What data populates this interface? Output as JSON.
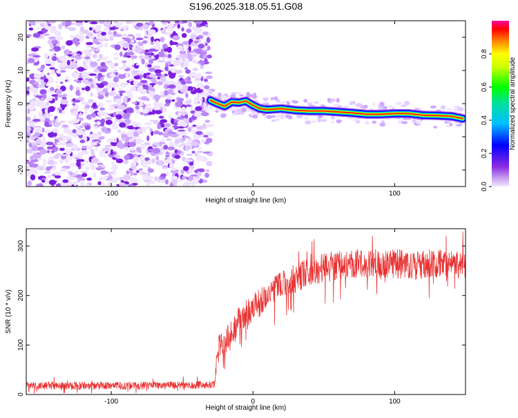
{
  "title": "S196.2025.318.05.51.G08",
  "chart_data": [
    {
      "type": "heatmap",
      "name": "spectrogram",
      "title": "S196.2025.318.05.51.G08",
      "xlabel": "Height of straight line (km)",
      "ylabel": "Frequency (Hz)",
      "xlim": [
        -160,
        150
      ],
      "ylim": [
        -25,
        25
      ],
      "xticks": [
        -100,
        0,
        100
      ],
      "yticks": [
        -20,
        -10,
        0,
        10,
        20
      ],
      "noise_region_x": [
        -160,
        -30
      ],
      "track": {
        "x": [
          -30,
          -25,
          -20,
          -15,
          -10,
          -5,
          0,
          5,
          10,
          20,
          30,
          40,
          50,
          60,
          70,
          80,
          90,
          100,
          110,
          120,
          130,
          140,
          148
        ],
        "freq": [
          1.0,
          0.0,
          -0.8,
          0.5,
          0.3,
          0.8,
          -0.5,
          -1.5,
          -1.8,
          -1.5,
          -2.0,
          -2.2,
          -2.2,
          -2.5,
          -2.8,
          -3.2,
          -3.2,
          -3.0,
          -3.0,
          -3.5,
          -3.6,
          -3.8,
          -4.5
        ]
      },
      "colorbar": {
        "label": "Normalized spectral amplitude",
        "range": [
          0,
          1
        ],
        "ticks": [
          "0.0",
          "0.2",
          "0.4",
          "0.6",
          "0.8"
        ]
      }
    },
    {
      "type": "line",
      "name": "snr",
      "xlabel": "Height of straight line (km)",
      "ylabel": "SNR (10 * v/v)",
      "xlim": [
        -160,
        150
      ],
      "ylim": [
        0,
        335
      ],
      "xticks": [
        -100,
        0,
        100
      ],
      "yticks": [
        0,
        100,
        200,
        300
      ],
      "color": "#e83030",
      "x": [
        -160,
        -140,
        -120,
        -100,
        -80,
        -60,
        -40,
        -27,
        -25,
        -20,
        -15,
        -10,
        -5,
        0,
        10,
        20,
        30,
        40,
        50,
        60,
        70,
        80,
        90,
        100,
        110,
        120,
        130,
        140,
        150
      ],
      "mean": [
        18,
        18,
        18,
        17,
        18,
        18,
        19,
        20,
        90,
        110,
        120,
        150,
        165,
        175,
        200,
        220,
        235,
        248,
        255,
        262,
        265,
        268,
        262,
        265,
        260,
        262,
        265,
        260,
        265
      ],
      "amp": [
        8,
        8,
        8,
        8,
        8,
        8,
        8,
        8,
        30,
        30,
        30,
        30,
        30,
        30,
        30,
        30,
        30,
        30,
        30,
        30,
        30,
        30,
        30,
        30,
        30,
        30,
        30,
        30,
        30
      ]
    }
  ]
}
